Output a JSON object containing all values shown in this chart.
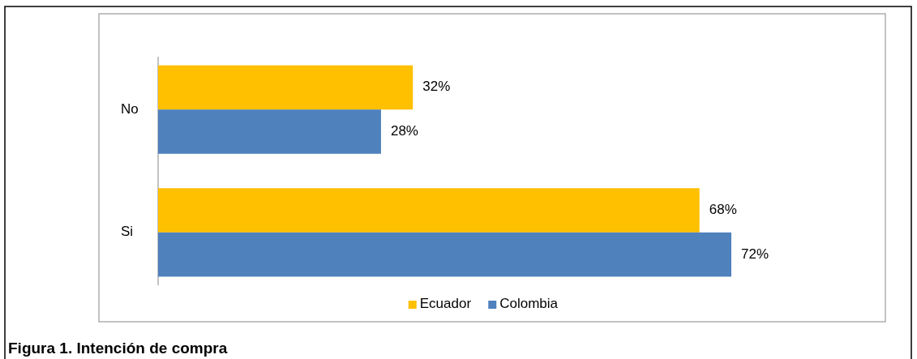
{
  "chart_data": {
    "type": "bar",
    "orientation": "horizontal",
    "title": "Figura 1. Intención de compra",
    "categories": [
      "No",
      "Si"
    ],
    "series": [
      {
        "name": "Ecuador",
        "color": "#ffc000",
        "values": [
          32,
          68
        ],
        "value_labels": [
          "32%",
          "68%"
        ]
      },
      {
        "name": "Colombia",
        "color": "#4f81bd",
        "values": [
          28,
          72
        ],
        "value_labels": [
          "28%",
          "72%"
        ]
      }
    ],
    "legend": "bottom"
  }
}
